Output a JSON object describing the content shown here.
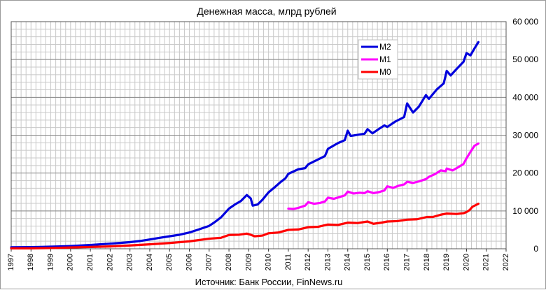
{
  "chart_data": {
    "type": "line",
    "title": "Денежная масса, млрд рублей",
    "source": "Источник: Банк России, FinNews.ru",
    "xlim": [
      1997,
      2022
    ],
    "ylim": [
      0,
      60000
    ],
    "x_ticks": [
      "1997",
      "1998",
      "1999",
      "2000",
      "2001",
      "2002",
      "2003",
      "2004",
      "2005",
      "2006",
      "2007",
      "2008",
      "2009",
      "2010",
      "2011",
      "2012",
      "2013",
      "2014",
      "2015",
      "2016",
      "2017",
      "2018",
      "2019",
      "2020",
      "2021",
      "2022"
    ],
    "y_ticks": [
      "0",
      "10 000",
      "20 000",
      "30 000",
      "40 000",
      "50 000",
      "60 000"
    ],
    "y_axis_side": "right",
    "grid": true,
    "legend_position": "top-right",
    "series": [
      {
        "name": "М2",
        "color": "#0000dd",
        "points": [
          [
            1997.0,
            400
          ],
          [
            1997.5,
            420
          ],
          [
            1998.0,
            450
          ],
          [
            1998.5,
            480
          ],
          [
            1999.0,
            550
          ],
          [
            1999.5,
            620
          ],
          [
            2000.0,
            720
          ],
          [
            2000.5,
            860
          ],
          [
            2001.0,
            1000
          ],
          [
            2001.5,
            1180
          ],
          [
            2002.0,
            1350
          ],
          [
            2002.5,
            1550
          ],
          [
            2003.0,
            1750
          ],
          [
            2003.5,
            2050
          ],
          [
            2004.0,
            2450
          ],
          [
            2004.5,
            2900
          ],
          [
            2005.0,
            3300
          ],
          [
            2005.5,
            3700
          ],
          [
            2006.0,
            4300
          ],
          [
            2006.5,
            5150
          ],
          [
            2007.0,
            6050
          ],
          [
            2007.3,
            7100
          ],
          [
            2007.6,
            8300
          ],
          [
            2008.0,
            10600
          ],
          [
            2008.3,
            11700
          ],
          [
            2008.6,
            12600
          ],
          [
            2008.9,
            14200
          ],
          [
            2009.1,
            13300
          ],
          [
            2009.2,
            11400
          ],
          [
            2009.45,
            11700
          ],
          [
            2009.7,
            13000
          ],
          [
            2010.0,
            14900
          ],
          [
            2010.3,
            16200
          ],
          [
            2010.6,
            17600
          ],
          [
            2010.85,
            18600
          ],
          [
            2011.0,
            19800
          ],
          [
            2011.5,
            21000
          ],
          [
            2011.85,
            21300
          ],
          [
            2012.0,
            22300
          ],
          [
            2012.5,
            23600
          ],
          [
            2012.85,
            24500
          ],
          [
            2013.0,
            26400
          ],
          [
            2013.5,
            27900
          ],
          [
            2013.85,
            28700
          ],
          [
            2014.0,
            31200
          ],
          [
            2014.15,
            29800
          ],
          [
            2014.5,
            30100
          ],
          [
            2014.85,
            30400
          ],
          [
            2015.0,
            31600
          ],
          [
            2015.25,
            30500
          ],
          [
            2015.5,
            31400
          ],
          [
            2015.85,
            32600
          ],
          [
            2016.0,
            32200
          ],
          [
            2016.4,
            33600
          ],
          [
            2016.85,
            34800
          ],
          [
            2017.0,
            38400
          ],
          [
            2017.3,
            36000
          ],
          [
            2017.6,
            37600
          ],
          [
            2017.95,
            40600
          ],
          [
            2018.1,
            39600
          ],
          [
            2018.5,
            42100
          ],
          [
            2018.85,
            43700
          ],
          [
            2019.0,
            47000
          ],
          [
            2019.2,
            45800
          ],
          [
            2019.5,
            47500
          ],
          [
            2019.85,
            49400
          ],
          [
            2020.0,
            51700
          ],
          [
            2020.2,
            51100
          ],
          [
            2020.4,
            52900
          ],
          [
            2020.6,
            54600
          ]
        ]
      },
      {
        "name": "М1",
        "color": "#ff00ff",
        "points": [
          [
            2011.0,
            10600
          ],
          [
            2011.25,
            10500
          ],
          [
            2011.5,
            10800
          ],
          [
            2011.85,
            11400
          ],
          [
            2012.0,
            12300
          ],
          [
            2012.3,
            11900
          ],
          [
            2012.6,
            12100
          ],
          [
            2012.85,
            12500
          ],
          [
            2013.0,
            13500
          ],
          [
            2013.3,
            13200
          ],
          [
            2013.6,
            13700
          ],
          [
            2013.85,
            14100
          ],
          [
            2014.0,
            15100
          ],
          [
            2014.3,
            14600
          ],
          [
            2014.6,
            14800
          ],
          [
            2014.85,
            14700
          ],
          [
            2015.0,
            15200
          ],
          [
            2015.3,
            14700
          ],
          [
            2015.6,
            15000
          ],
          [
            2015.85,
            15400
          ],
          [
            2016.0,
            16500
          ],
          [
            2016.3,
            16100
          ],
          [
            2016.6,
            16700
          ],
          [
            2016.85,
            17000
          ],
          [
            2017.0,
            17700
          ],
          [
            2017.3,
            17400
          ],
          [
            2017.6,
            17800
          ],
          [
            2017.95,
            18400
          ],
          [
            2018.1,
            19000
          ],
          [
            2018.4,
            19700
          ],
          [
            2018.7,
            20700
          ],
          [
            2018.95,
            20500
          ],
          [
            2019.0,
            21200
          ],
          [
            2019.3,
            20700
          ],
          [
            2019.6,
            21600
          ],
          [
            2019.85,
            22400
          ],
          [
            2020.0,
            23900
          ],
          [
            2020.2,
            25600
          ],
          [
            2020.4,
            27200
          ],
          [
            2020.6,
            27800
          ]
        ]
      },
      {
        "name": "М0",
        "color": "#ff0000",
        "points": [
          [
            1997.0,
            100
          ],
          [
            1998.0,
            120
          ],
          [
            1999.0,
            200
          ],
          [
            2000.0,
            350
          ],
          [
            2001.0,
            480
          ],
          [
            2002.0,
            630
          ],
          [
            2003.0,
            880
          ],
          [
            2004.0,
            1180
          ],
          [
            2005.0,
            1520
          ],
          [
            2006.0,
            1960
          ],
          [
            2007.0,
            2670
          ],
          [
            2007.6,
            2900
          ],
          [
            2008.0,
            3650
          ],
          [
            2008.5,
            3700
          ],
          [
            2008.9,
            4000
          ],
          [
            2009.1,
            3700
          ],
          [
            2009.3,
            3300
          ],
          [
            2009.7,
            3500
          ],
          [
            2010.0,
            4100
          ],
          [
            2010.5,
            4300
          ],
          [
            2011.0,
            5000
          ],
          [
            2011.5,
            5100
          ],
          [
            2012.0,
            5700
          ],
          [
            2012.5,
            5800
          ],
          [
            2013.0,
            6400
          ],
          [
            2013.5,
            6300
          ],
          [
            2014.0,
            6900
          ],
          [
            2014.5,
            6800
          ],
          [
            2015.0,
            7200
          ],
          [
            2015.3,
            6600
          ],
          [
            2015.7,
            6900
          ],
          [
            2016.0,
            7200
          ],
          [
            2016.5,
            7300
          ],
          [
            2017.0,
            7700
          ],
          [
            2017.5,
            7800
          ],
          [
            2018.0,
            8400
          ],
          [
            2018.3,
            8400
          ],
          [
            2018.7,
            9000
          ],
          [
            2019.0,
            9300
          ],
          [
            2019.5,
            9200
          ],
          [
            2019.85,
            9400
          ],
          [
            2020.0,
            9700
          ],
          [
            2020.15,
            10200
          ],
          [
            2020.3,
            11100
          ],
          [
            2020.6,
            11900
          ]
        ]
      }
    ]
  }
}
